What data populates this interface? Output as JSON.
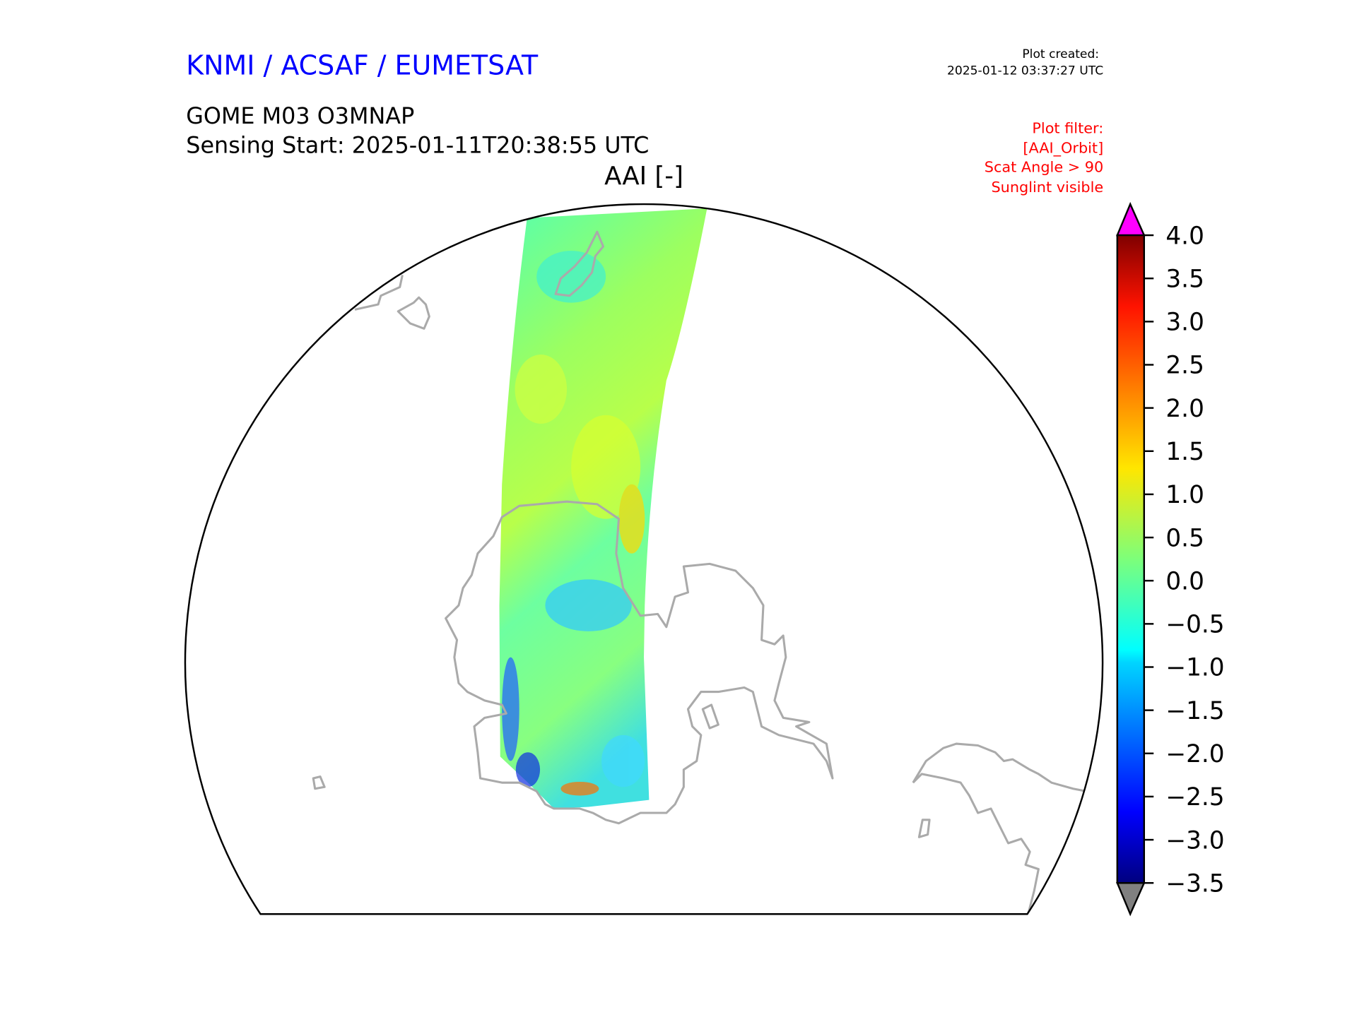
{
  "header": {
    "organization": "KNMI / ACSAF / EUMETSAT",
    "product": "GOME M03 O3MNAP",
    "sensing_start": "Sensing Start: 2025-01-11T20:38:55 UTC",
    "plot_created_label": "Plot created:",
    "plot_created_value": "2025-01-12 03:37:27 UTC"
  },
  "filter": {
    "lines": [
      "Plot filter:",
      "[AAI_Orbit]",
      "Scat Angle > 90",
      "Sunglint visible"
    ]
  },
  "colors": {
    "org_title": "#0000ff",
    "filter_text": "#ff0000",
    "coastline": "#aaaaaa",
    "over_color": "#ff00ff",
    "under_color": "#808080"
  },
  "chart_data": {
    "type": "heatmap",
    "title": "AAI [-]",
    "projection": "polar satellite map",
    "colormap": "jet",
    "colorbar": {
      "min": -3.5,
      "max": 4.0,
      "extend": "both",
      "ticks": [
        4.0,
        3.5,
        3.0,
        2.5,
        2.0,
        1.5,
        1.0,
        0.5,
        0.0,
        -0.5,
        -1.0,
        -1.5,
        -2.0,
        -2.5,
        -3.0,
        -3.5
      ],
      "tick_labels": [
        "4.0",
        "3.5",
        "3.0",
        "2.5",
        "2.0",
        "1.5",
        "1.0",
        "0.5",
        "0.0",
        "−0.5",
        "−1.0",
        "−1.5",
        "−2.0",
        "−2.5",
        "−3.0",
        "−3.5"
      ]
    },
    "swath_typical_range": [
      -1.0,
      1.0
    ]
  }
}
